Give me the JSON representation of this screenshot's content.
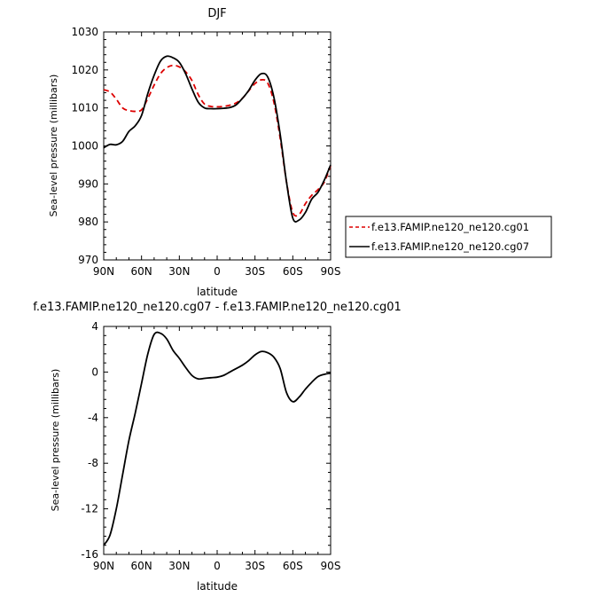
{
  "chart_data": [
    {
      "type": "line",
      "title": "DJF",
      "xlabel": "latitude",
      "ylabel": "Sea-level pressure (millibars)",
      "ylim": [
        970,
        1030
      ],
      "yticks": [
        "1030",
        "1020",
        "1010",
        "1000",
        "990",
        "980",
        "970"
      ],
      "xticks": [
        "90N",
        "60N",
        "30N",
        "0",
        "30S",
        "60S",
        "90S"
      ],
      "legend": {
        "placement": "outside-right",
        "entries": [
          "f.e13.FAMIP.ne120_ne120.cg01",
          "f.e13.FAMIP.ne120_ne120.cg07"
        ]
      },
      "series": [
        {
          "name": "f.e13.FAMIP.ne120_ne120.cg01",
          "color": "#dd0000",
          "dash": "dashed",
          "x": [
            90,
            85,
            80,
            75,
            70,
            65,
            60,
            55,
            50,
            45,
            40,
            35,
            30,
            25,
            20,
            15,
            10,
            5,
            0,
            -5,
            -10,
            -15,
            -20,
            -25,
            -30,
            -35,
            -40,
            -45,
            -50,
            -55,
            -60,
            -65,
            -70,
            -75,
            -80,
            -85,
            -90
          ],
          "y": [
            1014.8,
            1014.2,
            1012.3,
            1010.0,
            1009.3,
            1009.1,
            1009.5,
            1012.5,
            1016.0,
            1019.0,
            1020.6,
            1021.2,
            1020.8,
            1019.5,
            1017.2,
            1013.5,
            1011.0,
            1010.4,
            1010.3,
            1010.4,
            1010.7,
            1011.3,
            1012.5,
            1014.5,
            1016.4,
            1017.4,
            1016.6,
            1011.5,
            1002.0,
            990.5,
            982.5,
            982.0,
            984.8,
            987.0,
            988.5,
            990.5,
            994.8
          ]
        },
        {
          "name": "f.e13.FAMIP.ne120_ne120.cg07",
          "color": "#000000",
          "dash": "solid",
          "x": [
            90,
            85,
            80,
            75,
            70,
            65,
            60,
            55,
            50,
            45,
            40,
            35,
            30,
            25,
            20,
            15,
            10,
            5,
            0,
            -5,
            -10,
            -15,
            -20,
            -25,
            -30,
            -35,
            -40,
            -45,
            -50,
            -55,
            -60,
            -65,
            -70,
            -75,
            -80,
            -85,
            -90
          ],
          "y": [
            999.5,
            1000.4,
            1000.3,
            1001.2,
            1003.8,
            1005.3,
            1008.0,
            1013.8,
            1018.6,
            1022.3,
            1023.6,
            1023.2,
            1022.0,
            1019.0,
            1015.0,
            1011.5,
            1010.0,
            1009.8,
            1009.8,
            1009.9,
            1010.1,
            1010.8,
            1012.5,
            1014.6,
            1017.3,
            1019.0,
            1018.2,
            1012.8,
            1003.0,
            990.5,
            981.0,
            980.5,
            982.5,
            986.0,
            987.8,
            991.0,
            995.0
          ]
        }
      ]
    },
    {
      "type": "line",
      "title": "f.e13.FAMIP.ne120_ne120.cg07 - f.e13.FAMIP.ne120_ne120.cg01",
      "xlabel": "latitude",
      "ylabel": "Sea-level pressure (millibars)",
      "ylim": [
        -16,
        4
      ],
      "yticks": [
        "4",
        "0",
        "-4",
        "-8",
        "-12",
        "-16"
      ],
      "xticks": [
        "90N",
        "60N",
        "30N",
        "0",
        "30S",
        "60S",
        "90S"
      ],
      "series": [
        {
          "color": "#000000",
          "dash": "solid",
          "x": [
            90,
            85,
            80,
            75,
            70,
            65,
            60,
            55,
            50,
            45,
            40,
            35,
            30,
            25,
            20,
            15,
            10,
            5,
            0,
            -5,
            -10,
            -15,
            -20,
            -25,
            -30,
            -35,
            -40,
            -45,
            -50,
            -55,
            -60,
            -65,
            -70,
            -75,
            -80,
            -85,
            -90
          ],
          "y": [
            -15.2,
            -14.3,
            -12.0,
            -9.0,
            -6.0,
            -3.6,
            -1.0,
            1.6,
            3.3,
            3.4,
            2.9,
            1.9,
            1.2,
            0.4,
            -0.3,
            -0.6,
            -0.55,
            -0.5,
            -0.45,
            -0.3,
            0.0,
            0.3,
            0.6,
            1.0,
            1.5,
            1.8,
            1.7,
            1.3,
            0.3,
            -1.8,
            -2.6,
            -2.2,
            -1.5,
            -0.9,
            -0.4,
            -0.2,
            -0.1
          ]
        }
      ]
    }
  ]
}
